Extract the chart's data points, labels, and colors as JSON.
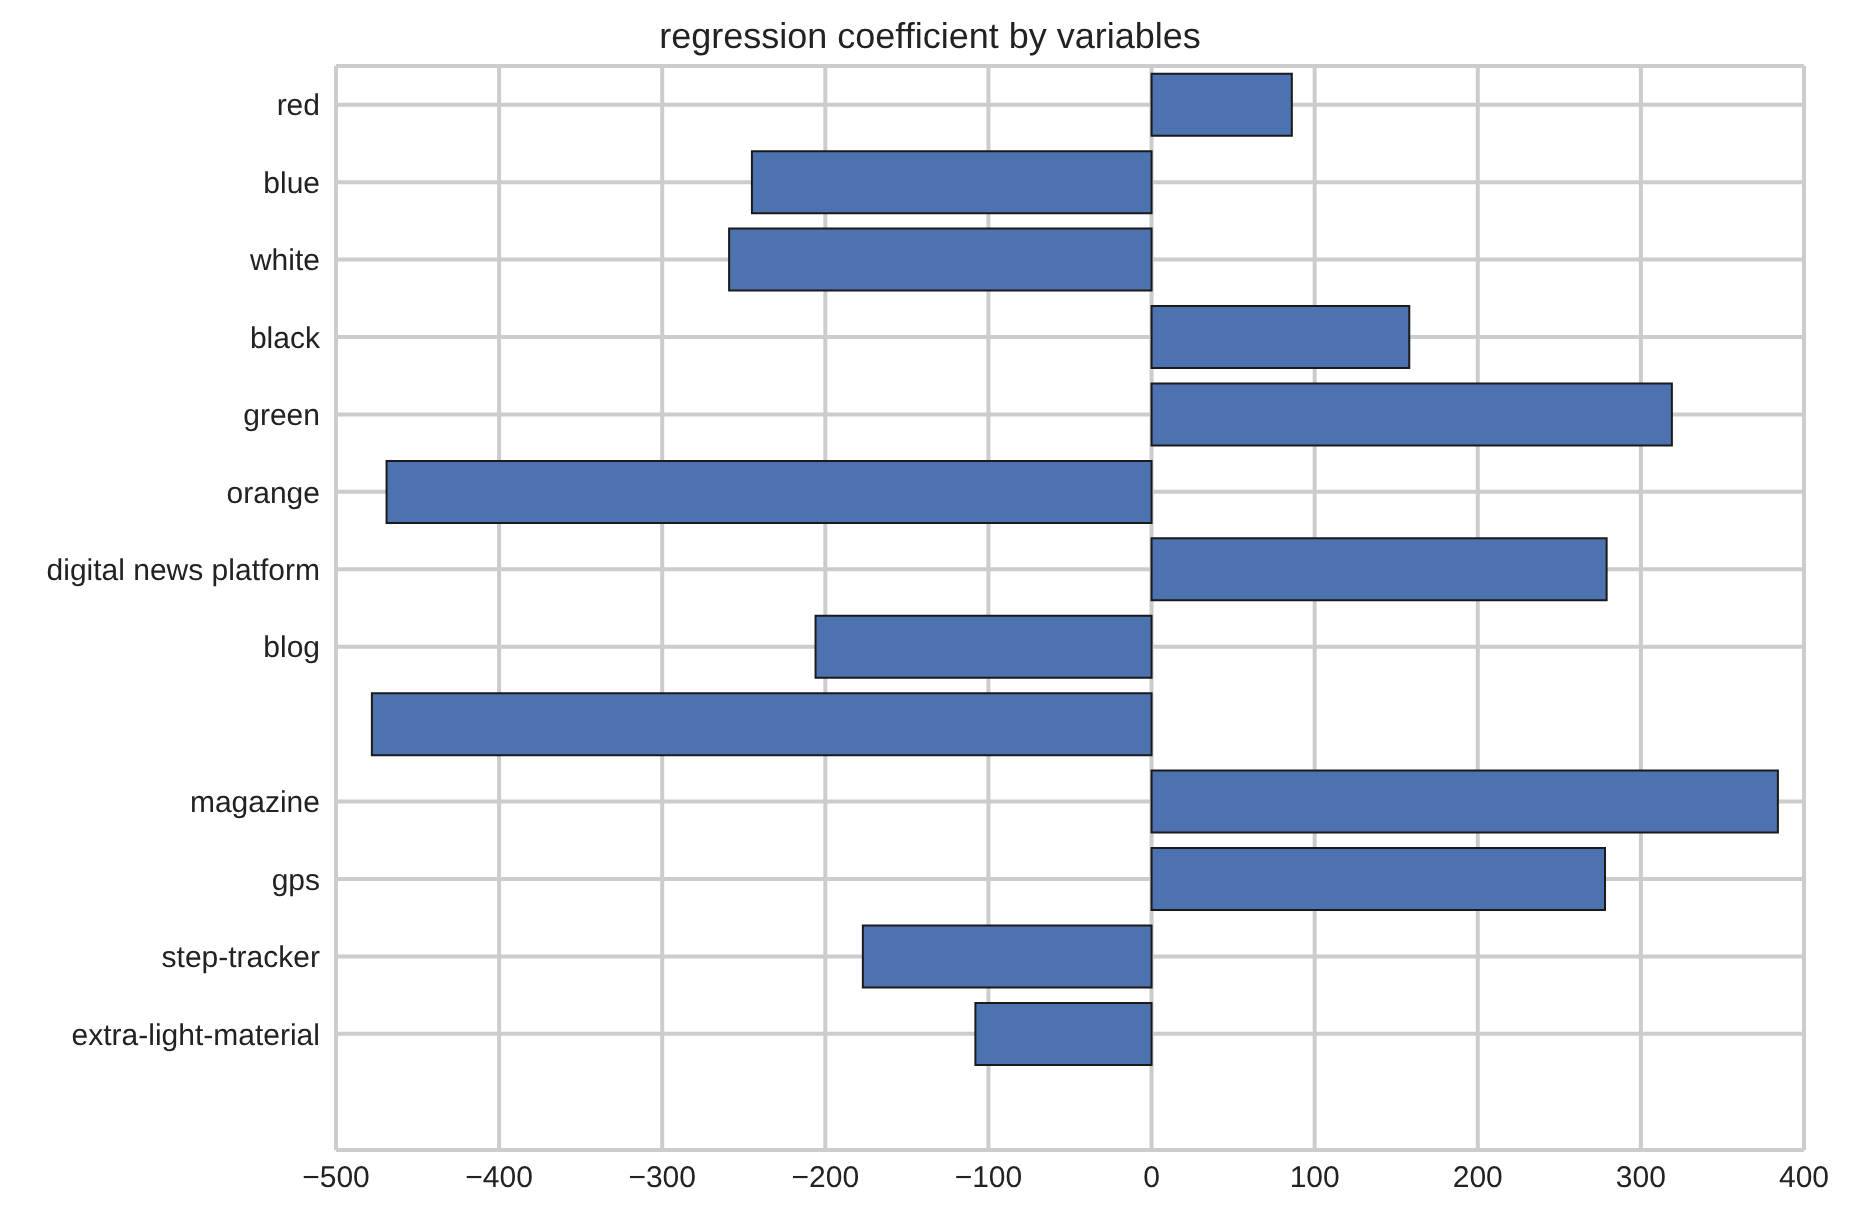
{
  "chart_data": {
    "type": "bar",
    "orientation": "horizontal",
    "title": "regression coefficient by variables",
    "categories": [
      "red",
      "blue",
      "white",
      "black",
      "green",
      "orange",
      "digital news platform",
      "blog",
      null,
      "magazine",
      "gps",
      "step-tracker",
      "extra-light-material",
      null
    ],
    "values": [
      86,
      -245,
      -259,
      158,
      319,
      -469,
      279,
      -206,
      -478,
      384,
      278,
      -177,
      -108,
      0
    ],
    "color": "#4c72b0",
    "xlim": [
      -500,
      400
    ],
    "xticks": [
      -500,
      -400,
      -300,
      -200,
      -100,
      0,
      100,
      200,
      300,
      400
    ],
    "grid": true,
    "legend": false
  }
}
